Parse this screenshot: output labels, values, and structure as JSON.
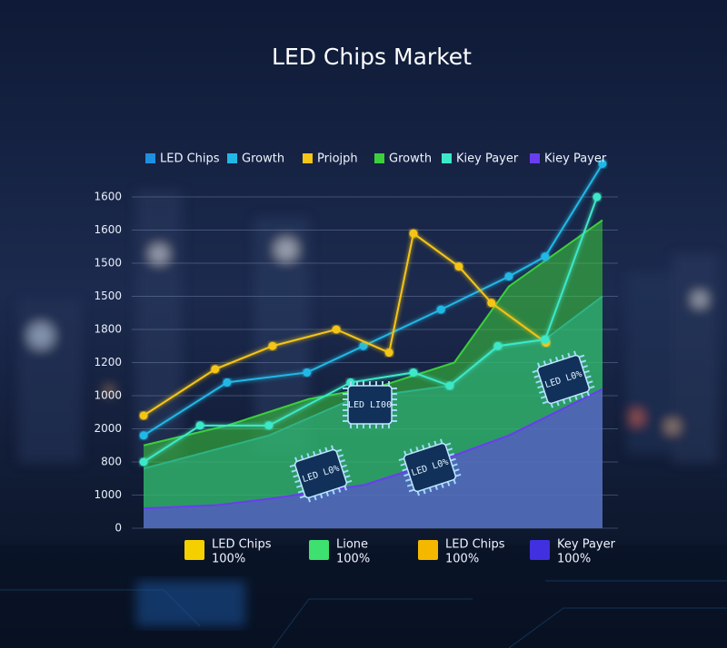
{
  "chart_data": {
    "type": "line",
    "title": "LED Chips Market",
    "xlim": [
      0,
      100
    ],
    "ylim": [
      0,
      11
    ],
    "yticks": [
      {
        "value": 0,
        "label": "0"
      },
      {
        "value": 1,
        "label": "1000"
      },
      {
        "value": 2,
        "label": "800"
      },
      {
        "value": 3,
        "label": "2000"
      },
      {
        "value": 4,
        "label": "1000"
      },
      {
        "value": 5,
        "label": "1200"
      },
      {
        "value": 6,
        "label": "1800"
      },
      {
        "value": 7,
        "label": "1500"
      },
      {
        "value": 8,
        "label": "1500"
      },
      {
        "value": 9,
        "label": "1600"
      },
      {
        "value": 10,
        "label": "1600"
      }
    ],
    "grid": true,
    "series": [
      {
        "name": "LED Chips",
        "color": "#1e90e0",
        "kind": "area",
        "x": [
          0,
          27.3,
          45.5,
          66.5,
          77.6,
          87.5,
          100
        ],
        "values": [
          1.8,
          2.8,
          3.9,
          4.3,
          5.5,
          5.7,
          7.0
        ]
      },
      {
        "name": "Growth",
        "color": "#22b8e6",
        "kind": "line",
        "x": [
          0,
          18.2,
          35.6,
          47.9,
          64.8,
          79.6,
          87.5,
          100
        ],
        "values": [
          2.8,
          4.4,
          4.7,
          5.5,
          6.6,
          7.6,
          8.2,
          11.0
        ]
      },
      {
        "name": "Priojph",
        "color": "#f5c518",
        "kind": "line",
        "x": [
          0,
          15.6,
          28.1,
          42,
          53.5,
          58.8,
          68.7,
          75.8,
          87.7
        ],
        "values": [
          3.4,
          4.8,
          5.5,
          6.0,
          5.3,
          8.9,
          7.9,
          6.8,
          5.6
        ]
      },
      {
        "name": "Growth",
        "color": "#3ccf3c",
        "kind": "area",
        "x": [
          0,
          18.2,
          36,
          51.9,
          67.7,
          79.6,
          100
        ],
        "values": [
          2.5,
          3.1,
          3.9,
          4.3,
          5.0,
          7.3,
          9.3
        ]
      },
      {
        "name": "Kiey Payer",
        "color": "#3de8c8",
        "kind": "line",
        "x": [
          0,
          12.3,
          27.3,
          45.1,
          58.8,
          66.7,
          77.2,
          87.5,
          98.8
        ],
        "values": [
          2.0,
          3.1,
          3.1,
          4.4,
          4.7,
          4.3,
          5.5,
          5.7,
          10.0
        ]
      },
      {
        "name": "Kiey Payer",
        "color": "#6a3df0",
        "kind": "area",
        "x": [
          0,
          16.2,
          28.1,
          47.9,
          63.8,
          79.6,
          100
        ],
        "values": [
          0.6,
          0.7,
          0.9,
          1.3,
          2.0,
          2.8,
          4.2
        ]
      }
    ],
    "bottom_legend": [
      {
        "name": "LED Chips",
        "label": "100%",
        "color": "#f5d000"
      },
      {
        "name": "Lione",
        "label": "100%",
        "color": "#3ee070"
      },
      {
        "name": "LED Chips",
        "label": "100%",
        "color": "#f5b800"
      },
      {
        "name": "Key Payer",
        "label": "100%",
        "color": "#4030e0"
      }
    ],
    "annotations": [
      "LED LI00",
      "LED L0%",
      "LED L0%",
      "LED L0%"
    ]
  }
}
